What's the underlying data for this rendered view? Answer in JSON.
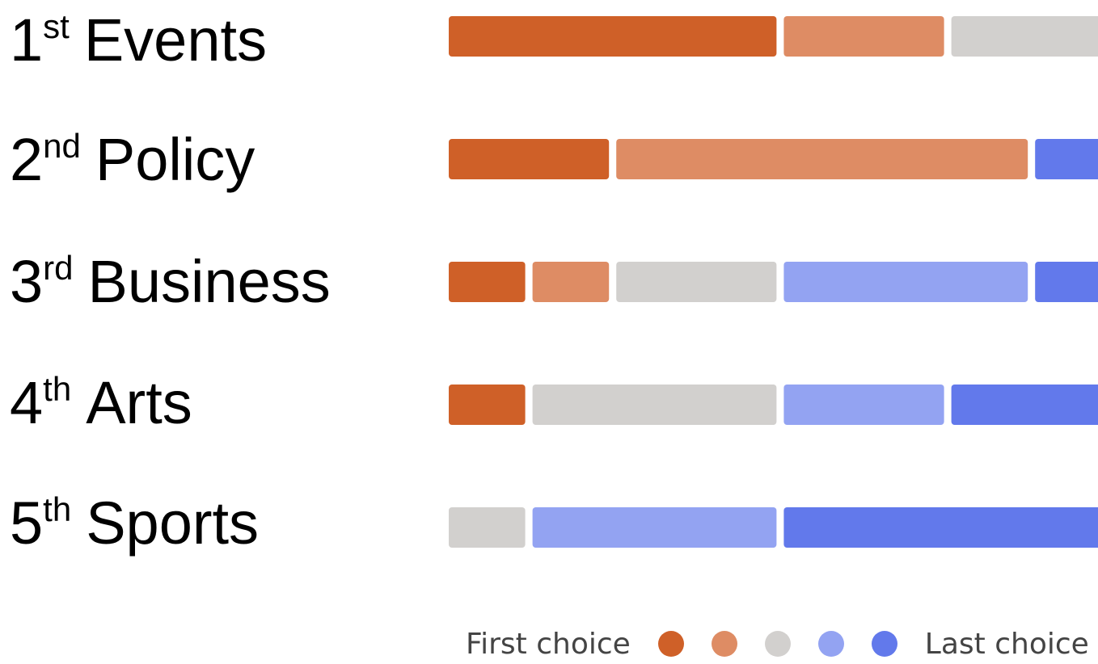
{
  "chart_data": {
    "type": "bar",
    "stacked": true,
    "orientation": "horizontal",
    "colors": [
      "#CF6028",
      "#DE8C64",
      "#D2D0CE",
      "#93A3F2",
      "#6279EB"
    ],
    "categories": [
      {
        "rank": "1",
        "suffix": "st",
        "name": "Events"
      },
      {
        "rank": "2",
        "suffix": "nd",
        "name": "Policy"
      },
      {
        "rank": "3",
        "suffix": "rd",
        "name": "Business"
      },
      {
        "rank": "4",
        "suffix": "th",
        "name": "Arts"
      },
      {
        "rank": "5",
        "suffix": "th",
        "name": "Sports"
      }
    ],
    "series": [
      {
        "values": [
          4,
          2,
          1,
          1,
          0
        ]
      },
      {
        "values": [
          2,
          5,
          1,
          0,
          0
        ]
      },
      {
        "values": [
          2,
          0,
          2,
          3,
          1
        ]
      },
      {
        "values": [
          0,
          0,
          3,
          2,
          3
        ]
      },
      {
        "values": [
          0,
          1,
          1,
          2,
          4
        ]
      }
    ],
    "legend": {
      "first_label": "First choice",
      "last_label": "Last choice",
      "position": "bottom-right"
    }
  }
}
